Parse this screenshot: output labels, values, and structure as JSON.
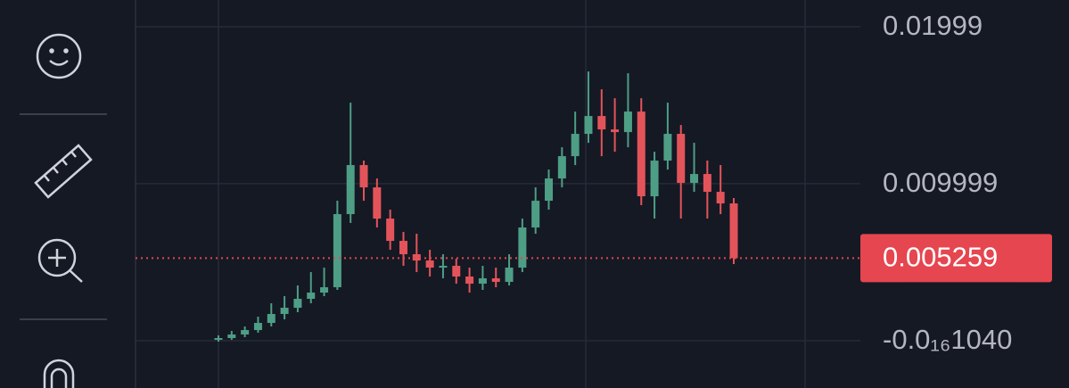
{
  "chart_data": {
    "type": "candlestick",
    "ylim": [
      -0.003009,
      0.021693
    ],
    "yticks": [
      0.01999,
      0.009999,
      {
        "value": -1.04e-17,
        "label": "-0.0₁₆1040"
      }
    ],
    "grid": true,
    "up_color": "#4e9e86",
    "down_color": "#e3545a",
    "last_price": 0.005259,
    "last_price_color": "#e5464f",
    "open": [
      5.7e-05,
      0.00017,
      0.000397,
      0.000681,
      0.001135,
      0.001703,
      0.0021,
      0.002668,
      0.003066,
      0.003406,
      0.008061,
      0.011184,
      0.009764,
      0.007777,
      0.006358,
      0.005507,
      0.005109,
      0.004655,
      0.004769,
      0.004087,
      0.003633,
      0.003974,
      0.003747,
      0.004655,
      0.00721,
      0.008913,
      0.010332,
      0.011751,
      0.013171,
      0.014306,
      0.013454,
      0.013284,
      0.01459,
      0.009197,
      0.011468,
      0.013171,
      0.010048,
      0.010616,
      0.009481,
      0.008743
    ],
    "high": [
      0.000341,
      0.000624,
      0.000908,
      0.001533,
      0.002384,
      0.002839,
      0.00352,
      0.004371,
      0.004655,
      0.008913,
      0.015158,
      0.011468,
      0.010332,
      0.008345,
      0.006926,
      0.006812,
      0.005791,
      0.005507,
      0.005223,
      0.004655,
      0.004769,
      0.004655,
      0.005507,
      0.007777,
      0.009764,
      0.0109,
      0.012319,
      0.01459,
      0.017145,
      0.016009,
      0.015441,
      0.017031,
      0.015441,
      0.012035,
      0.015158,
      0.013738,
      0.012603,
      0.011468,
      0.011184,
      0.009083
    ],
    "low": [
      -5.7e-05,
      5.7e-05,
      0.000227,
      0.000511,
      0.000908,
      0.001362,
      0.001817,
      0.002384,
      0.002839,
      0.003236,
      0.007494,
      0.008913,
      0.00721,
      0.005791,
      0.004769,
      0.004371,
      0.004087,
      0.003974,
      0.003633,
      0.003066,
      0.003236,
      0.003406,
      0.00352,
      0.004371,
      0.006812,
      0.008345,
      0.009764,
      0.011184,
      0.012603,
      0.011751,
      0.012035,
      0.012319,
      0.008629,
      0.007777,
      0.0109,
      0.007777,
      0.009481,
      0.007777,
      0.008061,
      0.004882
    ],
    "close": [
      0.00017,
      0.000397,
      0.000681,
      0.001135,
      0.001703,
      0.0021,
      0.002668,
      0.003066,
      0.003406,
      0.008061,
      0.011184,
      0.009764,
      0.007777,
      0.006358,
      0.005507,
      0.005109,
      0.004655,
      0.004769,
      0.004087,
      0.003633,
      0.003974,
      0.003747,
      0.004655,
      0.00721,
      0.008913,
      0.010332,
      0.011751,
      0.013171,
      0.014306,
      0.013454,
      0.013284,
      0.01459,
      0.009197,
      0.011468,
      0.013171,
      0.010048,
      0.010616,
      0.009481,
      0.008743,
      0.005259
    ]
  }
}
